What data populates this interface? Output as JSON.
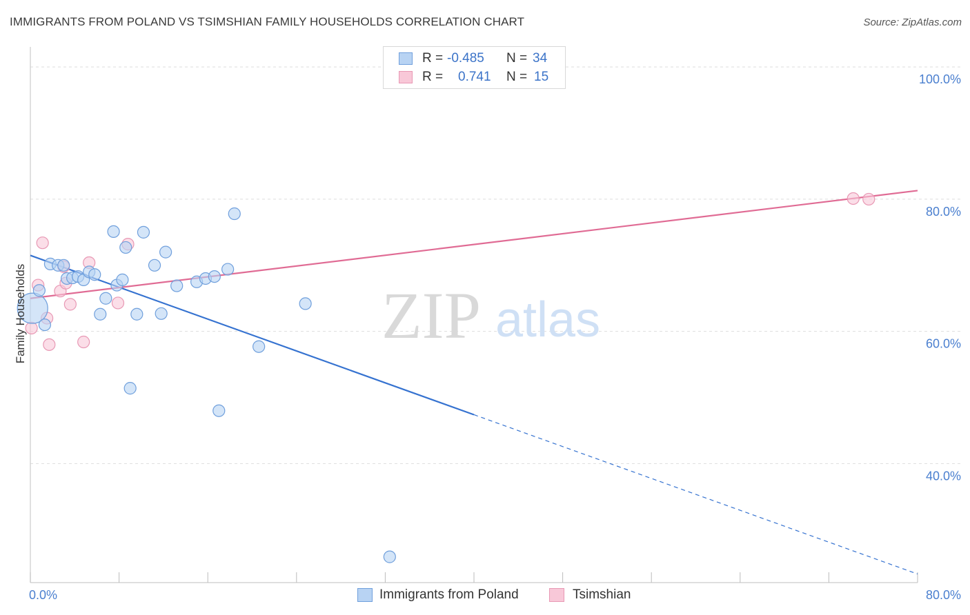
{
  "header": {
    "title": "IMMIGRANTS FROM POLAND VS TSIMSHIAN FAMILY HOUSEHOLDS CORRELATION CHART",
    "source": "Source: ZipAtlas.com"
  },
  "legend_box": {
    "rows": [
      {
        "r_label": "R =",
        "r_value": "-0.485",
        "n_label": "N =",
        "n_value": "34"
      },
      {
        "r_label": "R =",
        "r_value": "0.741",
        "n_label": "N =",
        "n_value": "15"
      }
    ]
  },
  "watermark": {
    "zip": "ZIP",
    "atlas": "atlas"
  },
  "colors": {
    "blue_fill": "#b8d3f3",
    "blue_stroke": "#6f9fdc",
    "blue_line": "#3572d0",
    "pink_fill": "#f8c8d8",
    "pink_stroke": "#e898b4",
    "pink_line": "#e06b94",
    "grid": "#dddddd",
    "tick_label": "#4a7fcf"
  },
  "chart_data": {
    "type": "scatter",
    "title": "IMMIGRANTS FROM POLAND VS TSIMSHIAN FAMILY HOUSEHOLDS CORRELATION CHART",
    "xlabel": "",
    "ylabel": "Family Households",
    "xlim": [
      0,
      80
    ],
    "ylim": [
      22,
      102
    ],
    "x_tick_labels": [
      {
        "value": 0,
        "label": "0.0%"
      },
      {
        "value": 80,
        "label": "80.0%"
      }
    ],
    "y_tick_labels": [
      {
        "value": 100,
        "label": "100.0%"
      },
      {
        "value": 80,
        "label": "80.0%"
      },
      {
        "value": 60,
        "label": "60.0%"
      },
      {
        "value": 40,
        "label": "40.0%"
      }
    ],
    "y_gridlines": [
      100,
      80,
      60,
      40
    ],
    "x_minor_ticks": [
      0,
      8,
      16,
      24,
      32,
      40,
      48,
      56,
      64,
      72,
      80
    ],
    "series": [
      {
        "name": "Immigrants from Poland",
        "color": "blue",
        "r": -0.485,
        "n": 34,
        "points": [
          [
            0.2,
            63.5
          ],
          [
            0.8,
            66.2
          ],
          [
            1.3,
            61.0
          ],
          [
            1.8,
            70.2
          ],
          [
            2.5,
            70.0
          ],
          [
            3.0,
            70.0
          ],
          [
            3.3,
            68.0
          ],
          [
            3.8,
            68.1
          ],
          [
            4.3,
            68.3
          ],
          [
            4.8,
            67.8
          ],
          [
            5.3,
            69.0
          ],
          [
            5.8,
            68.6
          ],
          [
            6.3,
            62.6
          ],
          [
            6.8,
            65.0
          ],
          [
            7.5,
            75.1
          ],
          [
            7.8,
            67.0
          ],
          [
            8.3,
            67.8
          ],
          [
            8.6,
            72.7
          ],
          [
            9.0,
            51.4
          ],
          [
            9.6,
            62.6
          ],
          [
            10.2,
            75.0
          ],
          [
            11.2,
            70.0
          ],
          [
            11.8,
            62.7
          ],
          [
            12.2,
            72.0
          ],
          [
            13.2,
            66.9
          ],
          [
            15.0,
            67.5
          ],
          [
            15.8,
            68.0
          ],
          [
            16.6,
            68.3
          ],
          [
            17.0,
            48.0
          ],
          [
            17.8,
            69.4
          ],
          [
            18.4,
            77.8
          ],
          [
            20.6,
            57.7
          ],
          [
            24.8,
            64.2
          ],
          [
            32.4,
            25.9
          ]
        ],
        "point_sizes": [
          3,
          1,
          1,
          1,
          1,
          1,
          1,
          1,
          1,
          1,
          1,
          1,
          1,
          1,
          1,
          1,
          1,
          1,
          1,
          1,
          1,
          1,
          1,
          1,
          1,
          1,
          1,
          1,
          1,
          1,
          1,
          1,
          1,
          1
        ],
        "trend": {
          "x1": 0,
          "y1": 71.5,
          "x2": 40,
          "y2": 47.4,
          "dash_to_x": 80,
          "dash_to_y": 23.3
        }
      },
      {
        "name": "Tsimshian",
        "color": "pink",
        "r": 0.741,
        "n": 15,
        "points": [
          [
            0.1,
            60.5
          ],
          [
            0.7,
            67.0
          ],
          [
            1.1,
            73.4
          ],
          [
            1.5,
            62.0
          ],
          [
            1.7,
            58.0
          ],
          [
            2.7,
            66.1
          ],
          [
            3.0,
            69.8
          ],
          [
            3.2,
            67.3
          ],
          [
            3.6,
            64.1
          ],
          [
            4.8,
            58.4
          ],
          [
            5.3,
            70.4
          ],
          [
            7.9,
            64.3
          ],
          [
            8.8,
            73.2
          ],
          [
            74.2,
            80.1
          ],
          [
            75.6,
            80.0
          ]
        ],
        "point_sizes": [
          1,
          1,
          1,
          1,
          1,
          1,
          1,
          1,
          1,
          1,
          1,
          1,
          1,
          1,
          1
        ],
        "trend": {
          "x1": 0,
          "y1": 65.0,
          "x2": 80,
          "y2": 81.3
        }
      }
    ],
    "legend": [
      "Immigrants from Poland",
      "Tsimshian"
    ],
    "legend_position": "bottom-center"
  }
}
